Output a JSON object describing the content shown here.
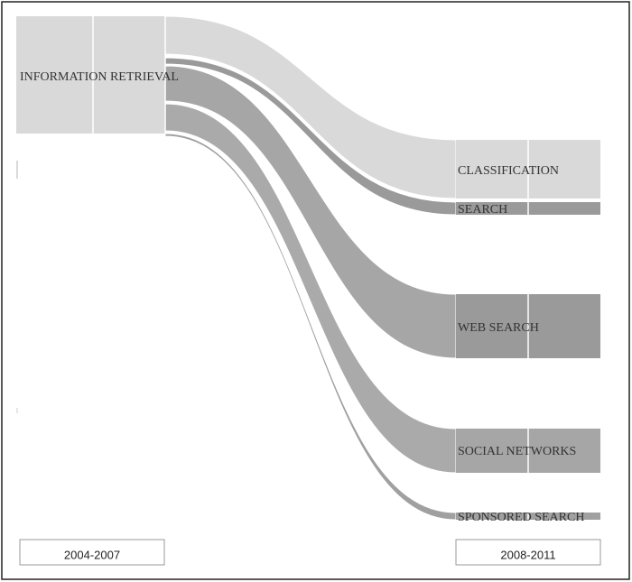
{
  "source": {
    "label": "INFORMATION RETRIEVAL"
  },
  "targets": [
    {
      "label": "CLASSIFICATION"
    },
    {
      "label": "SEARCH"
    },
    {
      "label": "WEB SEARCH"
    },
    {
      "label": "SOCIAL NETWORKS"
    },
    {
      "label": "SPONSORED SEARCH"
    }
  ],
  "periods": [
    "2004-2007",
    "2008-2011"
  ]
}
